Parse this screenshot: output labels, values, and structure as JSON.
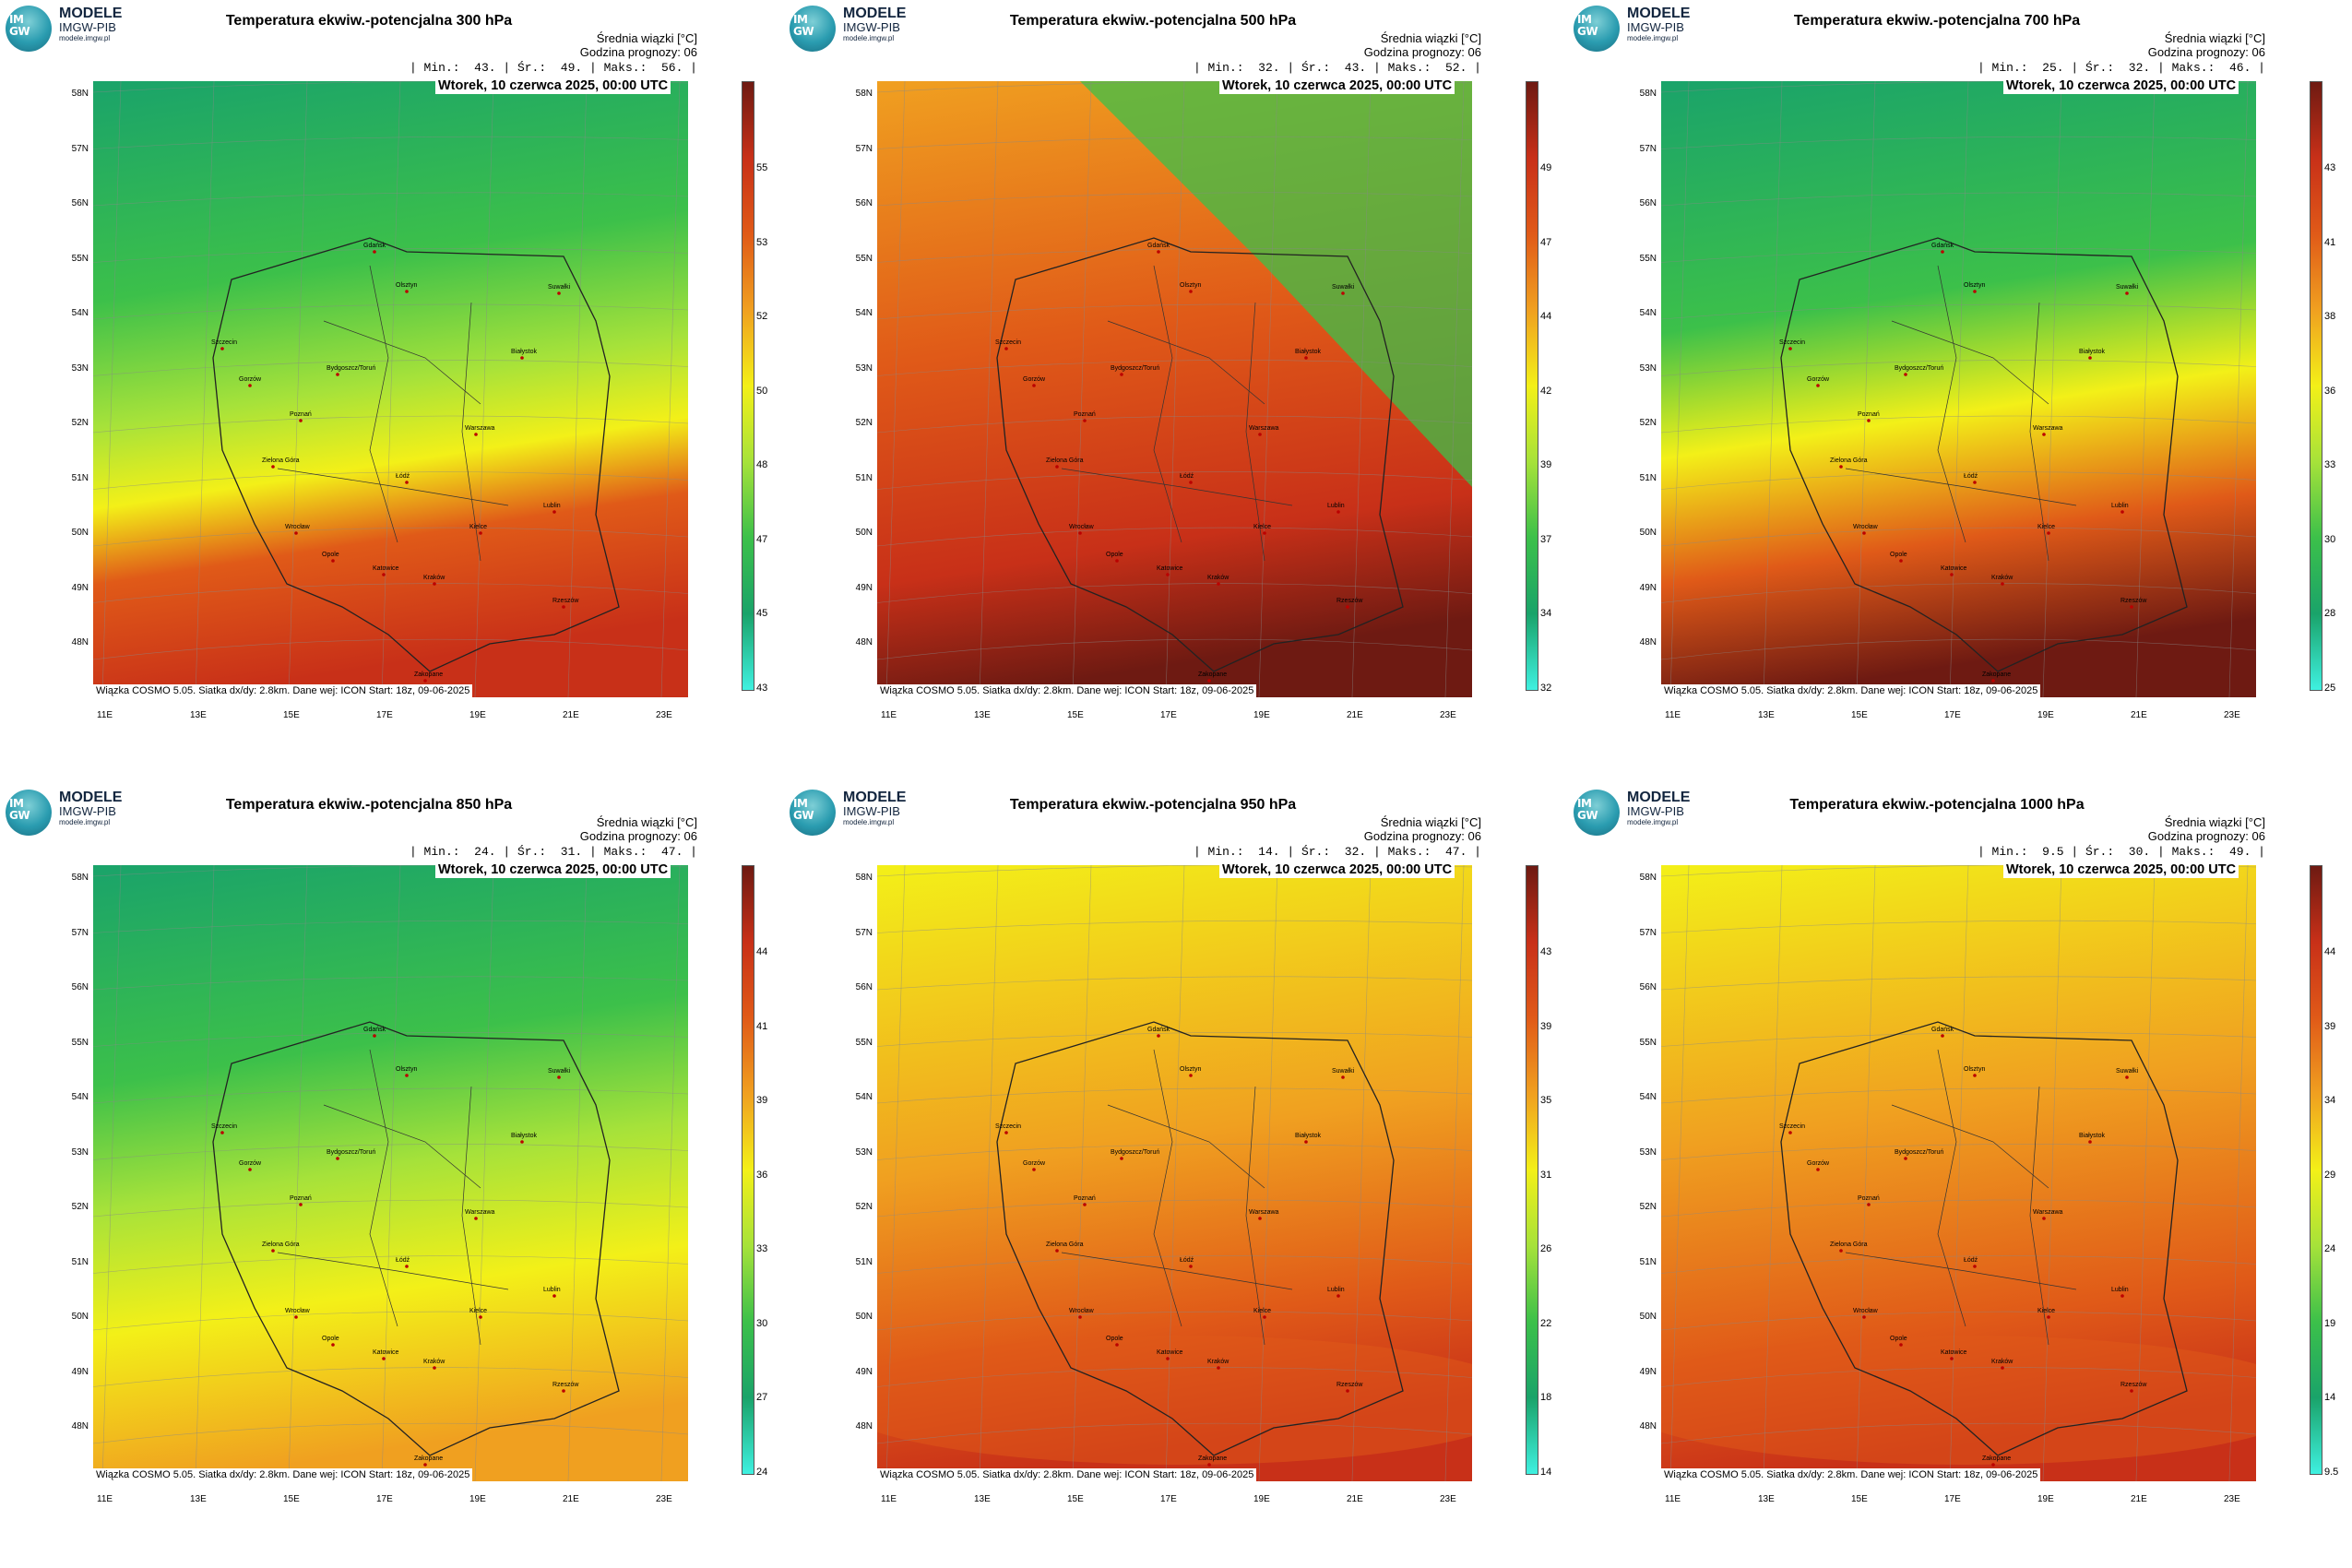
{
  "brand": {
    "line1": "MODELE",
    "line2": "IMGW-PIB",
    "line3": "modele.imgw.pl",
    "logo_text_top": "IM",
    "logo_text_bottom": "GW"
  },
  "common": {
    "info_line1": "Średnia wiązki [°C]",
    "info_line2": "Godzina prognozy: 06",
    "date": "Wtorek, 10 czerwca 2025, 00:00 UTC",
    "footer": "Wiązka COSMO 5.05. Siatka dx/dy: 2.8km. Dane wej: ICON Start: 18z, 09-06-2025",
    "lat_labels": [
      "58N",
      "57N",
      "56N",
      "55N",
      "54N",
      "53N",
      "52N",
      "51N",
      "50N",
      "49N",
      "48N"
    ],
    "lon_labels": [
      "11E",
      "13E",
      "15E",
      "17E",
      "19E",
      "21E",
      "23E"
    ],
    "cities": [
      "Gdańsk",
      "Olsztyn",
      "Suwałki",
      "Szczecin",
      "Białystok",
      "Bydgoszcz/Toruń",
      "Gorzów",
      "Poznań",
      "Warszawa",
      "Zielona Góra",
      "Łódź",
      "Lublin",
      "Wrocław",
      "Kielce",
      "Opole",
      "Katowice",
      "Kraków",
      "Rzeszów",
      "Zakopane"
    ]
  },
  "panels": [
    {
      "title": "Temperatura ekwiw.-potencjalna 300 hPa",
      "min": "43.",
      "avg": "49.",
      "max": "56.",
      "colorbar_ticks": [
        "55",
        "53",
        "52",
        "50",
        "48",
        "47",
        "45",
        "43"
      ],
      "scheme": "p300"
    },
    {
      "title": "Temperatura ekwiw.-potencjalna 500 hPa",
      "min": "32.",
      "avg": "43.",
      "max": "52.",
      "colorbar_ticks": [
        "49",
        "47",
        "44",
        "42",
        "39",
        "37",
        "34",
        "32"
      ],
      "scheme": "p500"
    },
    {
      "title": "Temperatura ekwiw.-potencjalna 700 hPa",
      "min": "25.",
      "avg": "32.",
      "max": "46.",
      "colorbar_ticks": [
        "43",
        "41",
        "38",
        "36",
        "33",
        "30",
        "28",
        "25"
      ],
      "scheme": "p700"
    },
    {
      "title": "Temperatura ekwiw.-potencjalna 850 hPa",
      "min": "24.",
      "avg": "31.",
      "max": "47.",
      "colorbar_ticks": [
        "44",
        "41",
        "39",
        "36",
        "33",
        "30",
        "27",
        "24"
      ],
      "scheme": "p850"
    },
    {
      "title": "Temperatura ekwiw.-potencjalna 950 hPa",
      "min": "14.",
      "avg": "32.",
      "max": "47.",
      "colorbar_ticks": [
        "43",
        "39",
        "35",
        "31",
        "26",
        "22",
        "18",
        "14"
      ],
      "scheme": "p950"
    },
    {
      "title": "Temperatura ekwiw.-potencjalna 1000 hPa",
      "min": "9.5",
      "avg": "30.",
      "max": "49.",
      "colorbar_ticks": [
        "44",
        "39",
        "34",
        "29",
        "24",
        "19",
        "14",
        "9.5"
      ],
      "scheme": "p1000"
    }
  ],
  "colors": {
    "cyan": "#3ff0e0",
    "green_dark": "#1aa36a",
    "green": "#3cc04a",
    "lime": "#a6e23a",
    "yellow": "#f3f018",
    "orange": "#f0a020",
    "red_orange": "#e05a18",
    "red": "#c83018",
    "dark_red": "#6e1a12"
  }
}
